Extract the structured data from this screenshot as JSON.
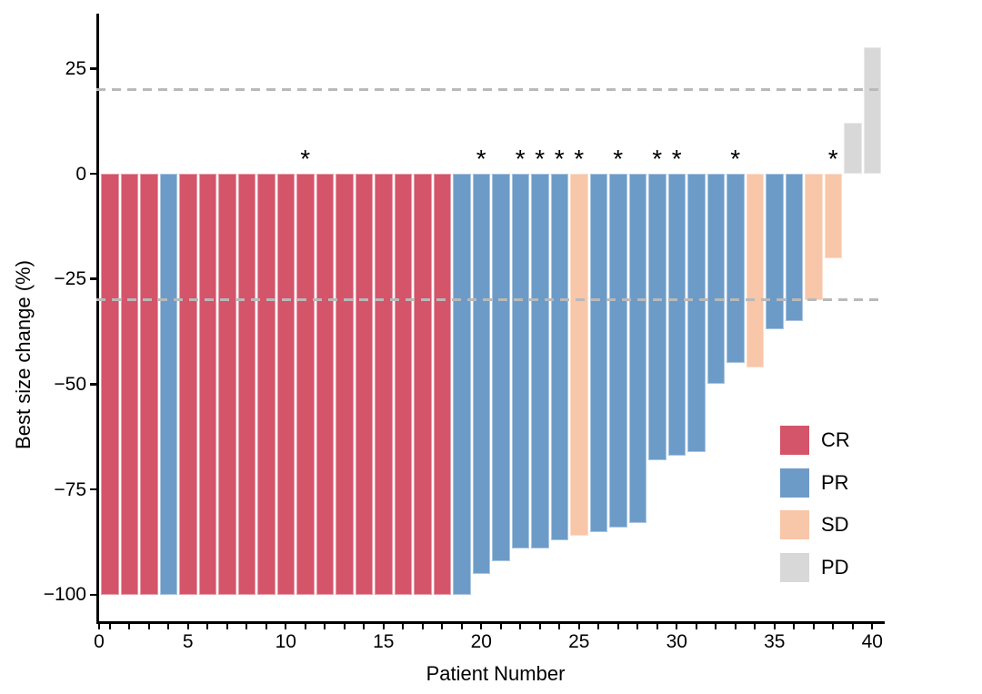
{
  "chart_data": {
    "type": "bar",
    "title": "",
    "xlabel": "Patient Number",
    "ylabel": "Best size change (%)",
    "ylim": [
      -106,
      38
    ],
    "grid": false,
    "legend_position": "right-inside",
    "flag_symbol": "*",
    "axis_color": "#000000",
    "reference_line_color": "#b9b9b9",
    "reference_lines": [
      20,
      -30
    ],
    "y_ticks": [
      {
        "value": 25,
        "label": "25"
      },
      {
        "value": 0,
        "label": "0"
      },
      {
        "value": -25,
        "label": "−25"
      },
      {
        "value": -50,
        "label": "−50"
      },
      {
        "value": -75,
        "label": "−75"
      },
      {
        "value": -100,
        "label": "−100"
      }
    ],
    "x_ticks_labeled": [
      {
        "value": 0,
        "label": "0"
      },
      {
        "value": 5,
        "label": "5"
      },
      {
        "value": 10,
        "label": "10"
      },
      {
        "value": 15,
        "label": "15"
      },
      {
        "value": 20,
        "label": "20"
      },
      {
        "value": 25,
        "label": "25"
      },
      {
        "value": 30,
        "label": "30"
      },
      {
        "value": 35,
        "label": "35"
      },
      {
        "value": 40,
        "label": "40"
      }
    ],
    "x_minor_ticks_every": 1,
    "legend": [
      {
        "label": "CR",
        "color": "#d4546a"
      },
      {
        "label": "PR",
        "color": "#6c9bc8"
      },
      {
        "label": "SD",
        "color": "#f8c6a8"
      },
      {
        "label": "PD",
        "color": "#d8d8d8"
      }
    ],
    "patients": [
      {
        "patient": 1,
        "value": -100,
        "response": "CR",
        "star": false
      },
      {
        "patient": 2,
        "value": -100,
        "response": "CR",
        "star": false
      },
      {
        "patient": 3,
        "value": -100,
        "response": "CR",
        "star": false
      },
      {
        "patient": 4,
        "value": -100,
        "response": "PR",
        "star": false
      },
      {
        "patient": 5,
        "value": -100,
        "response": "CR",
        "star": false
      },
      {
        "patient": 6,
        "value": -100,
        "response": "CR",
        "star": false
      },
      {
        "patient": 7,
        "value": -100,
        "response": "CR",
        "star": false
      },
      {
        "patient": 8,
        "value": -100,
        "response": "CR",
        "star": false
      },
      {
        "patient": 9,
        "value": -100,
        "response": "CR",
        "star": false
      },
      {
        "patient": 10,
        "value": -100,
        "response": "CR",
        "star": false
      },
      {
        "patient": 11,
        "value": -100,
        "response": "CR",
        "star": true
      },
      {
        "patient": 12,
        "value": -100,
        "response": "CR",
        "star": false
      },
      {
        "patient": 13,
        "value": -100,
        "response": "CR",
        "star": false
      },
      {
        "patient": 14,
        "value": -100,
        "response": "CR",
        "star": false
      },
      {
        "patient": 15,
        "value": -100,
        "response": "CR",
        "star": false
      },
      {
        "patient": 16,
        "value": -100,
        "response": "CR",
        "star": false
      },
      {
        "patient": 17,
        "value": -100,
        "response": "CR",
        "star": false
      },
      {
        "patient": 18,
        "value": -100,
        "response": "CR",
        "star": false
      },
      {
        "patient": 19,
        "value": -100,
        "response": "PR",
        "star": false
      },
      {
        "patient": 20,
        "value": -95,
        "response": "PR",
        "star": true
      },
      {
        "patient": 21,
        "value": -92,
        "response": "PR",
        "star": false
      },
      {
        "patient": 22,
        "value": -89,
        "response": "PR",
        "star": true
      },
      {
        "patient": 23,
        "value": -89,
        "response": "PR",
        "star": true
      },
      {
        "patient": 24,
        "value": -87,
        "response": "PR",
        "star": true
      },
      {
        "patient": 25,
        "value": -86,
        "response": "SD",
        "star": true
      },
      {
        "patient": 26,
        "value": -85,
        "response": "PR",
        "star": false
      },
      {
        "patient": 27,
        "value": -84,
        "response": "PR",
        "star": true
      },
      {
        "patient": 28,
        "value": -83,
        "response": "PR",
        "star": false
      },
      {
        "patient": 29,
        "value": -68,
        "response": "PR",
        "star": true
      },
      {
        "patient": 30,
        "value": -67,
        "response": "PR",
        "star": true
      },
      {
        "patient": 31,
        "value": -66,
        "response": "PR",
        "star": false
      },
      {
        "patient": 32,
        "value": -50,
        "response": "PR",
        "star": false
      },
      {
        "patient": 33,
        "value": -45,
        "response": "PR",
        "star": true
      },
      {
        "patient": 34,
        "value": -46,
        "response": "SD",
        "star": false
      },
      {
        "patient": 35,
        "value": -37,
        "response": "PR",
        "star": false
      },
      {
        "patient": 36,
        "value": -35,
        "response": "PR",
        "star": false
      },
      {
        "patient": 37,
        "value": -30,
        "response": "SD",
        "star": false
      },
      {
        "patient": 38,
        "value": -20,
        "response": "SD",
        "star": true
      },
      {
        "patient": 39,
        "value": 12,
        "response": "PD",
        "star": false
      },
      {
        "patient": 40,
        "value": 30,
        "response": "PD",
        "star": false
      }
    ]
  }
}
